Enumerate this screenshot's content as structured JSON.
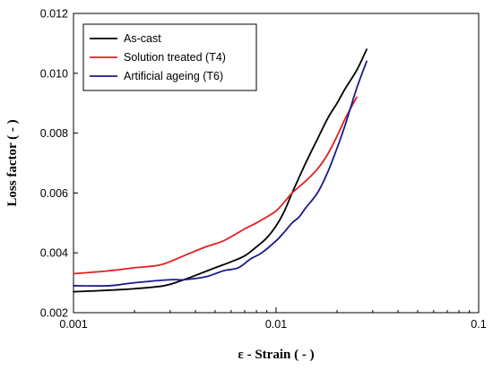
{
  "chart_data": {
    "type": "line",
    "title": "",
    "xlabel": "ε - Strain ( - )",
    "ylabel": "Loss factor ( - )",
    "xscale": "log",
    "xlim": [
      0.001,
      0.1
    ],
    "ylim": [
      0.002,
      0.012
    ],
    "xticks": [
      0.001,
      0.01,
      0.1
    ],
    "xtick_labels": [
      "0.001",
      "0.01",
      "0.1"
    ],
    "yticks": [
      0.002,
      0.004,
      0.006,
      0.008,
      0.01,
      0.012
    ],
    "ytick_labels": [
      "0.002",
      "0.004",
      "0.006",
      "0.008",
      "0.010",
      "0.012"
    ],
    "grid": false,
    "legend_position": "top-left",
    "series": [
      {
        "name": "As-cast",
        "color": "#000000",
        "x": [
          0.001,
          0.0015,
          0.002,
          0.0028,
          0.0035,
          0.0042,
          0.005,
          0.006,
          0.007,
          0.008,
          0.009,
          0.01,
          0.011,
          0.012,
          0.014,
          0.016,
          0.018,
          0.02,
          0.022,
          0.025,
          0.028
        ],
        "y": [
          0.0027,
          0.00275,
          0.0028,
          0.0029,
          0.0031,
          0.0033,
          0.0035,
          0.0037,
          0.0039,
          0.0042,
          0.0045,
          0.0049,
          0.0054,
          0.006,
          0.007,
          0.0078,
          0.0085,
          0.009,
          0.0095,
          0.0101,
          0.0108
        ]
      },
      {
        "name": "Solution treated (T4)",
        "color": "#e02020",
        "x": [
          0.001,
          0.0015,
          0.002,
          0.0027,
          0.0035,
          0.0045,
          0.0055,
          0.007,
          0.008,
          0.009,
          0.01,
          0.011,
          0.012,
          0.014,
          0.016,
          0.018,
          0.02,
          0.022,
          0.025
        ],
        "y": [
          0.0033,
          0.0034,
          0.0035,
          0.0036,
          0.0039,
          0.0042,
          0.0044,
          0.0048,
          0.005,
          0.0052,
          0.0054,
          0.0057,
          0.006,
          0.0064,
          0.0068,
          0.0073,
          0.0079,
          0.0085,
          0.0092
        ]
      },
      {
        "name": "Artificial ageing (T6)",
        "color": "#1a1a8c",
        "x": [
          0.001,
          0.0015,
          0.002,
          0.003,
          0.0035,
          0.0045,
          0.0055,
          0.0065,
          0.0075,
          0.0085,
          0.01,
          0.011,
          0.012,
          0.013,
          0.014,
          0.016,
          0.018,
          0.02,
          0.022,
          0.025,
          0.028
        ],
        "y": [
          0.0029,
          0.0029,
          0.003,
          0.0031,
          0.0031,
          0.0032,
          0.0034,
          0.0035,
          0.0038,
          0.004,
          0.0044,
          0.0047,
          0.005,
          0.0052,
          0.0055,
          0.006,
          0.0067,
          0.0075,
          0.0083,
          0.0095,
          0.0104
        ]
      }
    ]
  }
}
